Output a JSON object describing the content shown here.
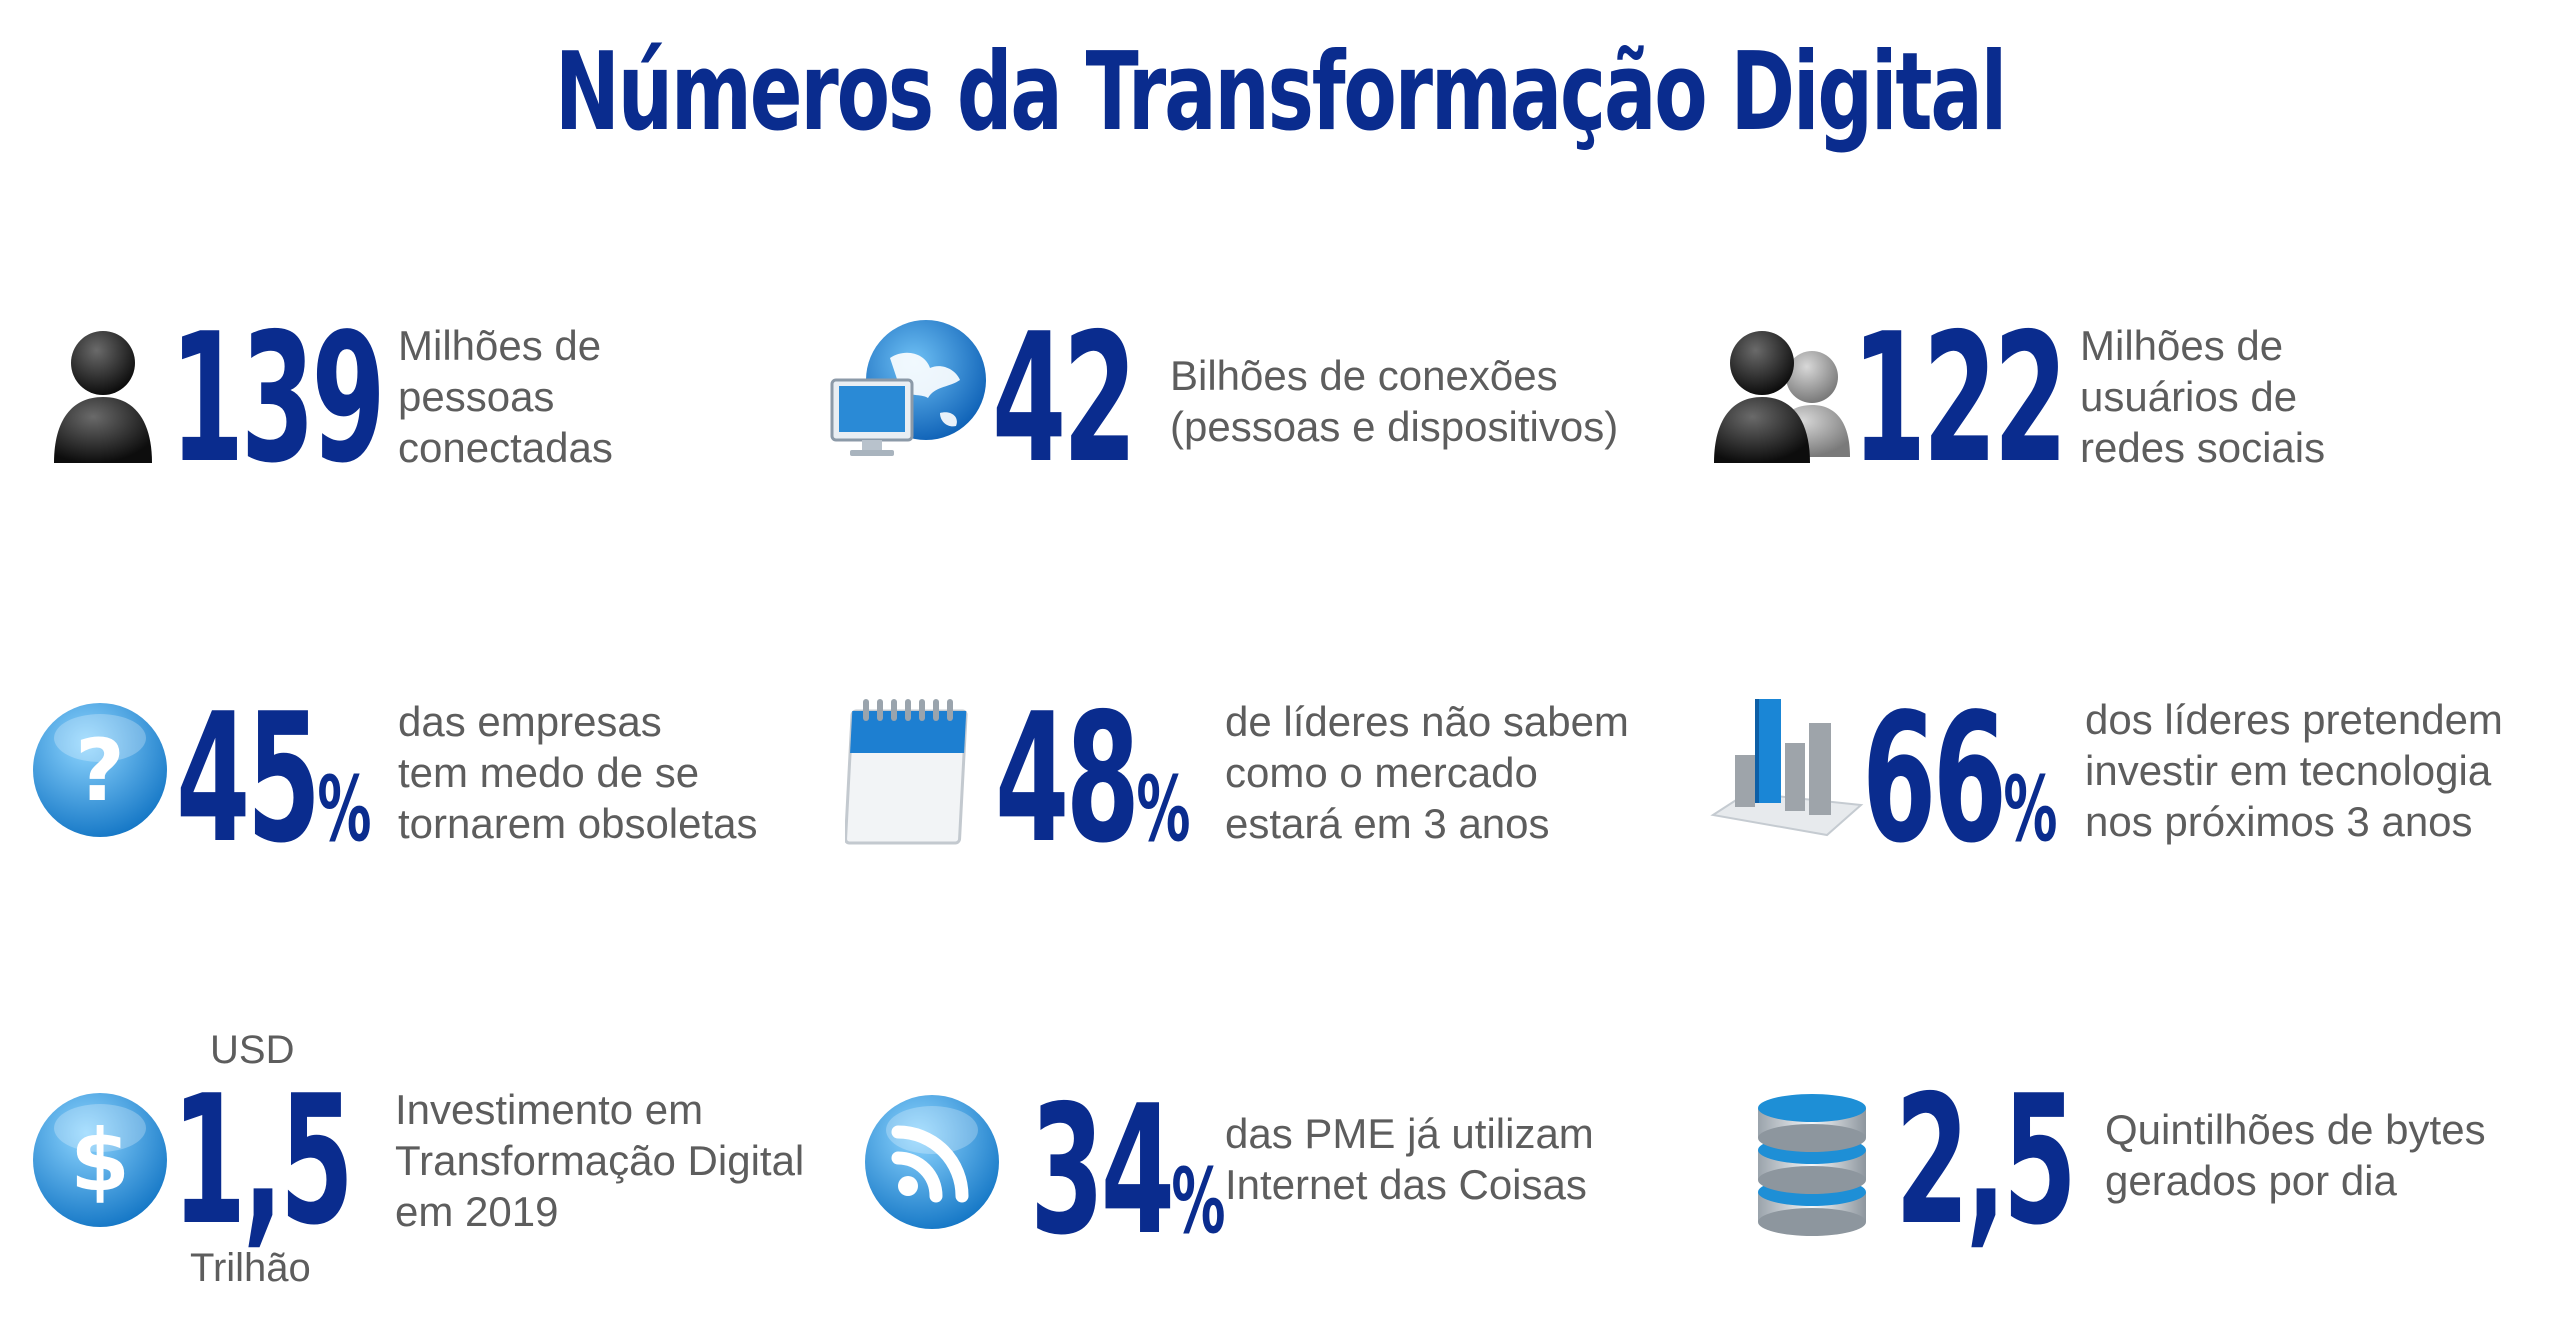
{
  "title": "Números da Transformação Digital",
  "stats": {
    "pessoas": {
      "value": "139",
      "line1": "Milhões de",
      "line2": "pessoas",
      "line3": "conectadas",
      "icon": "person-icon"
    },
    "conexoes": {
      "value": "42",
      "line1": "Bilhões de conexões",
      "line2": "(pessoas e dispositivos)",
      "icon": "globe-computer-icon"
    },
    "redes": {
      "value": "122",
      "line1": "Milhões de",
      "line2": "usuários de",
      "line3": "redes sociais",
      "icon": "users-icon"
    },
    "empresas": {
      "value": "45",
      "unit": "%",
      "line1": "das empresas",
      "line2": "tem medo de se",
      "line3": "tornarem obsoletas",
      "icon": "question-icon"
    },
    "lideres_mercado": {
      "value": "48",
      "unit": "%",
      "line1": "de líderes não sabem",
      "line2": "como o mercado",
      "line3": "estará em 3 anos",
      "icon": "calendar-icon"
    },
    "lideres_tecnologia": {
      "value": "66",
      "unit": "%",
      "line1": "dos líderes pretendem",
      "line2": "investir em tecnologia",
      "line3": "nos próximos 3 anos",
      "icon": "bar-chart-icon"
    },
    "investimento": {
      "value": "1,5",
      "prefix": "USD",
      "suffix": "Trilhão",
      "line1": "Investimento em",
      "line2": "Transformação Digital",
      "line3": "em 2019",
      "icon": "dollar-icon"
    },
    "pme": {
      "value": "34",
      "unit": "%",
      "line1": "das PME já utilizam",
      "line2": "Internet das Coisas",
      "icon": "rss-icon"
    },
    "bytes": {
      "value": "2,5",
      "line1": "Quintilhões de bytes",
      "line2": "gerados por dia",
      "icon": "database-icon"
    }
  },
  "colors": {
    "accent": "#0a2c8e",
    "text": "#5d5d5d",
    "icon_blue": "#1e8fd6"
  }
}
